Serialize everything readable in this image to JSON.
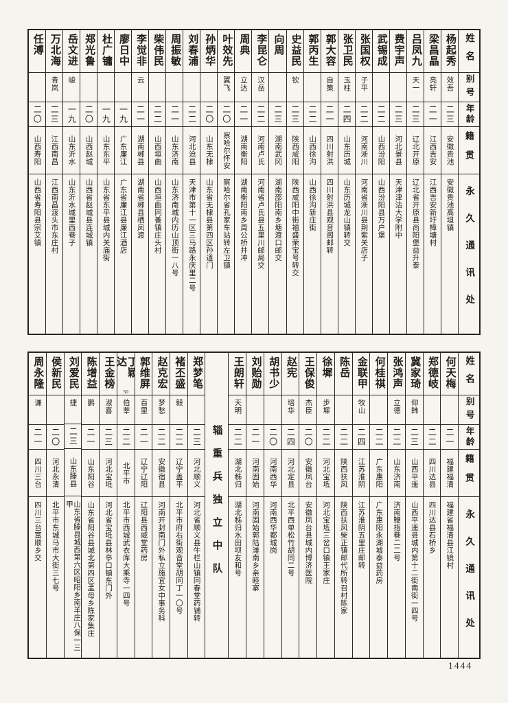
{
  "page_number": "1444",
  "headers": {
    "name": "姓名",
    "byname": "别号",
    "age": "年龄",
    "native": "籍贯",
    "address": "永久通讯处"
  },
  "top_table": {
    "persons": [
      {
        "name": "杨起秀",
        "byname": "效吾",
        "age": "二三",
        "native": "安徽贵池",
        "address": "安徽贵池高坦镇"
      },
      {
        "name": "梁昌晶",
        "byname": "亮轩",
        "age": "二一",
        "native": "江西吉安",
        "address": "江西吉安新圩樟塘村"
      },
      {
        "name": "吕凤九",
        "byname": "天一",
        "age": "二三",
        "native": "辽北开原",
        "address": "辽北省开原县尚阳堡益升泰"
      },
      {
        "name": "费宇声",
        "byname": "",
        "age": "二三",
        "native": "河北景县",
        "address": "天津津沽大学附中"
      },
      {
        "name": "武锡成",
        "byname": "",
        "age": "二二",
        "native": "山西汾阳",
        "address": "山西汾阳县万户堡"
      },
      {
        "name": "张国权",
        "byname": "子平",
        "age": "二二",
        "native": "河南淅川",
        "address": "河南省淅川县荆紫关店子"
      },
      {
        "name": "张卫民",
        "byname": "玉柱",
        "age": "二四",
        "native": "山东历城",
        "address": "山东历城龙山镇转交"
      },
      {
        "name": "郭大容",
        "byname": "自策",
        "age": "二一",
        "native": "四川射洪",
        "address": "四川射洪县观音阁邮转"
      },
      {
        "name": "郭丙生",
        "byname": "",
        "age": "二二",
        "native": "山西徐沟",
        "address": "山西徐沟新庄街"
      },
      {
        "name": "史益民",
        "byname": "钦",
        "age": "二三",
        "native": "陕西咸阳",
        "address": "陕西咸阳中街福盛荣宝号转交"
      },
      {
        "name": "向周",
        "byname": "",
        "age": "二三",
        "native": "湖南武冈",
        "address": "湖南邵阳南乡塘渡口邮交"
      },
      {
        "name": "李昆仑",
        "byname": "汉岳",
        "age": "二二",
        "native": "河南卢氏",
        "address": "河南省卢氏县五里川邮局交"
      },
      {
        "name": "周典",
        "byname": "立达",
        "age": "二一",
        "native": "湖南衡阳",
        "address": "湖南衡阳南乡周公桥井冲"
      },
      {
        "name": "叶效先",
        "byname": "翼飞",
        "age": "二〇",
        "native": "察哈尔怀安",
        "address": "察哈尔省孔家车站转左卫镇"
      },
      {
        "name": "孙炳华",
        "byname": "",
        "age": "二〇",
        "native": "山东无棣",
        "address": "山东省无棣县第四区孙道门"
      },
      {
        "name": "刘春浦",
        "byname": "",
        "age": "二二",
        "native": "河北沧县",
        "address": "天津市第十一区三马路永庆里二号"
      },
      {
        "name": "周振敏",
        "byname": "",
        "age": "二一",
        "native": "山东济南",
        "address": "山东济南城内历山顶街一八号"
      },
      {
        "name": "柴伟民",
        "byname": "",
        "age": "二二",
        "native": "山西垣曲",
        "address": "山西垣曲同善镇庄头村"
      },
      {
        "name": "李觉非",
        "byname": "云",
        "age": "二一",
        "native": "湖南郴县",
        "address": "湖南省郴县栖凤渡"
      },
      {
        "name": "廖日中",
        "byname": "",
        "age": "一九",
        "native": "广东廉江",
        "address": "广东省廉江县廉江酒店"
      },
      {
        "name": "杜广镛",
        "byname": "",
        "age": "一九",
        "native": "山东东平",
        "address": "山东省东平县城内关庙街"
      },
      {
        "name": "郑光鲁",
        "byname": "",
        "age": "二〇",
        "native": "山西赵城",
        "address": "山西省赵城县连城镇"
      },
      {
        "name": "岳文进",
        "byname": "峻",
        "age": "一九",
        "native": "山东沂水",
        "address": "山东沂水城里西巷子"
      },
      {
        "name": "万北海",
        "byname": "青岚",
        "age": "二三",
        "native": "江西南昌",
        "address": "江西南昌渡头市东庄村"
      },
      {
        "name": "任溥",
        "byname": "",
        "age": "二〇",
        "native": "山西寿阳",
        "address": "山西省寿阳县宗艾镇"
      }
    ]
  },
  "bottom_table": {
    "persons": [
      {
        "name": "何天梅",
        "byname": "",
        "age": "二一",
        "native": "福建福清",
        "address": "福建省福清县江镜村"
      },
      {
        "name": "郑德岐",
        "byname": "",
        "age": "二二",
        "native": "四川达县",
        "address": "四川达县石桥乡"
      },
      {
        "name": "冀家琦",
        "byname": "仰韩",
        "age": "二三",
        "native": "山西平遥",
        "address": "山西平遥县城内第十二街南街一四号"
      },
      {
        "name": "张鸿声",
        "byname": "立德",
        "age": "二二",
        "native": "山东济南",
        "address": "济南鞭指巷二二号"
      },
      {
        "name": "何桂祺",
        "byname": "",
        "age": "二二",
        "native": "广东惠阳",
        "address": "广东惠阳永湖墟泰益药房"
      },
      {
        "name": "金联甲",
        "byname": "牧山",
        "age": "二四",
        "native": "江苏淮阴",
        "address": "江苏淮阴五里庄邮转"
      },
      {
        "name": "陈岳",
        "byname": "",
        "age": "二二",
        "native": "陕西扶风",
        "address": "陕西扶风柴正镇邮代所转召村陈家"
      },
      {
        "name": "徐墀",
        "byname": "步墀",
        "age": "二二",
        "native": "河北宝坻",
        "address": "河北宝坻三岔口镇王家庄"
      },
      {
        "name": "王保俊",
        "byname": "杰臣",
        "age": "二〇",
        "native": "安徽凤台",
        "address": "安徽凤台县城内博济医院"
      },
      {
        "name": "赵宪",
        "byname": "培华",
        "age": "二四",
        "native": "河北定县",
        "address": "北平西单松竹胡同二号"
      },
      {
        "name": "胡书少",
        "byname": "",
        "age": "二〇",
        "native": "河南西华",
        "address": "河南西华都城岗"
      },
      {
        "name": "刘贻勋",
        "byname": "",
        "age": "二一",
        "native": "河南固始",
        "address": "河南固始郭陆滩南乡亲睦寨"
      },
      {
        "name": "王朗轩",
        "byname": "天明",
        "age": "二二",
        "native": "湖北秭归",
        "address": "湖北秭归水田坝友和号"
      },
      {
        "unit": "辎重兵独立中队"
      },
      {
        "name": "郑梦笔",
        "byname": "",
        "age": "二三",
        "native": "河北顺义",
        "address": "河北省顺义县牛栏山镇同春堂药铺转"
      },
      {
        "name": "褚丕盛",
        "byname": "毅",
        "age": "二二",
        "native": "辽宁盖平",
        "address": "北平市府右街观音堂胡同丁一〇号"
      },
      {
        "name": "赵克宏",
        "byname": "梦愁",
        "age": "二二",
        "native": "安徽宿县",
        "address": "河南开封南门外私立施宜女中事务科"
      },
      {
        "name": "郭维屏",
        "byname": "百里",
        "age": "二一",
        "native": "辽宁辽阳",
        "address": "辽阳县西威堂药房"
      },
      {
        "name": "丁颖达",
        "note": "50",
        "byname": "伯莘",
        "age": "二二",
        "native": "北平市",
        "address": "北平市西城武衣库大乘寺一四号"
      },
      {
        "name": "王金榜",
        "byname": "淑喜",
        "age": "二三",
        "native": "河北宝坻",
        "address": "河北省宝坻县林亭口镇东门外"
      },
      {
        "name": "陈增益",
        "byname": "鹏",
        "age": "二一",
        "native": "山东阳谷",
        "address": "山东省阳谷县城北第四区孟母乡陈家集庄"
      },
      {
        "name": "刘爱民",
        "byname": "捷",
        "age": "二三",
        "native": "山东滕县",
        "address": "山东省滕县城西第六区昭阳乡南羊庄八保一三甲"
      },
      {
        "name": "侯新民",
        "byname": "",
        "age": "二〇",
        "native": "河北永清",
        "address": "北平市东城马市大街三七号"
      },
      {
        "name": "周永隆",
        "byname": "谦",
        "age": "二一",
        "native": "四川三台",
        "address": "四川三台富顺乡交"
      }
    ]
  }
}
